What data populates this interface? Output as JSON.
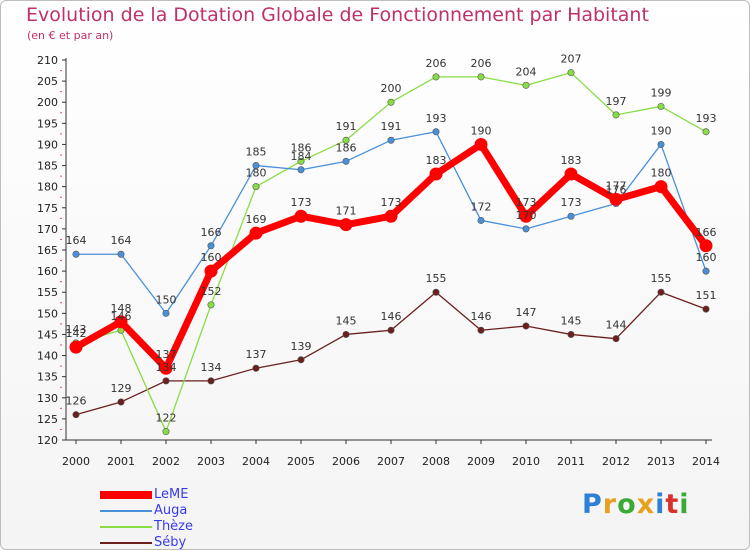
{
  "header": {
    "title": "Evolution de la Dotation Globale de Fonctionnement par Habitant",
    "subtitle": "(en € et par an)"
  },
  "chart_data": {
    "type": "line",
    "x": [
      2000,
      2001,
      2002,
      2003,
      2004,
      2005,
      2006,
      2007,
      2008,
      2009,
      2010,
      2011,
      2012,
      2013,
      2014
    ],
    "ylim": [
      120,
      210
    ],
    "ytick_step": 5,
    "grid": false,
    "legend_position": "bottom-left",
    "series": [
      {
        "name": "LeME",
        "color": "#ff0000",
        "values": [
          142,
          148,
          137,
          160,
          169,
          173,
          171,
          173,
          183,
          190,
          173,
          183,
          177,
          180,
          166
        ]
      },
      {
        "name": "Auga",
        "color": "#4a90d9",
        "values": [
          164,
          164,
          150,
          166,
          185,
          184,
          186,
          191,
          193,
          172,
          170,
          173,
          176,
          190,
          160
        ]
      },
      {
        "name": "Thèze",
        "color": "#88dd44",
        "values": [
          143,
          146,
          122,
          152,
          180,
          186,
          191,
          200,
          206,
          206,
          204,
          207,
          197,
          199,
          193
        ]
      },
      {
        "name": "Séby",
        "color": "#6b1f1f",
        "values": [
          126,
          129,
          134,
          134,
          137,
          139,
          145,
          146,
          155,
          146,
          147,
          145,
          144,
          155,
          151
        ]
      }
    ]
  },
  "logo": {
    "letters": [
      "P",
      "r",
      "o",
      "x",
      "i",
      "t",
      "i"
    ],
    "colors": [
      "#2e7fd6",
      "#e8a020",
      "#3aaa35",
      "#e8a020",
      "#2e7fd6",
      "#d9302b",
      "#3aaa35"
    ]
  }
}
